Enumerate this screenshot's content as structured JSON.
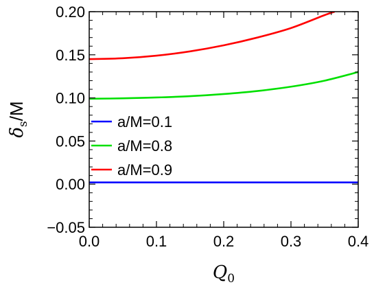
{
  "chart_data": {
    "type": "line",
    "xlabel": {
      "main": "Q",
      "sub": "0"
    },
    "ylabel": {
      "main": "δ",
      "sub": "s",
      "suffix": "/M"
    },
    "xlim": [
      0.0,
      0.4
    ],
    "ylim": [
      -0.05,
      0.2
    ],
    "xticks": [
      "0.0",
      "0.1",
      "0.2",
      "0.3",
      "0.4"
    ],
    "yticks": [
      "−0.05",
      "0.00",
      "0.05",
      "0.10",
      "0.15",
      "0.20"
    ],
    "grid": false,
    "legend_position": "center-left",
    "series": [
      {
        "name": "a/M=0.1",
        "color": "#0000ff",
        "x": [
          0.0,
          0.1,
          0.2,
          0.3,
          0.4
        ],
        "y": [
          0.002,
          0.002,
          0.002,
          0.002,
          0.002
        ]
      },
      {
        "name": "a/M=0.8",
        "color": "#00e000",
        "x": [
          0.0,
          0.05,
          0.1,
          0.15,
          0.2,
          0.25,
          0.3,
          0.35,
          0.4
        ],
        "y": [
          0.099,
          0.0995,
          0.1005,
          0.102,
          0.1045,
          0.108,
          0.113,
          0.12,
          0.13
        ]
      },
      {
        "name": "a/M=0.9",
        "color": "#ff0000",
        "x": [
          0.0,
          0.05,
          0.1,
          0.15,
          0.2,
          0.25,
          0.3,
          0.35,
          0.365
        ],
        "y": [
          0.145,
          0.146,
          0.149,
          0.154,
          0.161,
          0.17,
          0.181,
          0.196,
          0.2
        ]
      }
    ]
  }
}
